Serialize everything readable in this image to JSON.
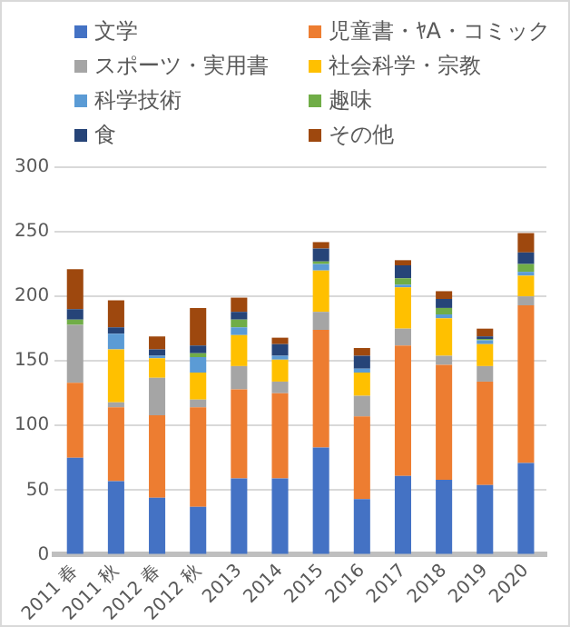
{
  "chart_data": {
    "type": "bar",
    "stacked": true,
    "legend": "top",
    "grid": "y",
    "categories": [
      "2011 春",
      "2011 秋",
      "2012 春",
      "2012 秋",
      "2013",
      "2014",
      "2015",
      "2016",
      "2017",
      "2018",
      "2019",
      "2020"
    ],
    "ylim": [
      0,
      300
    ],
    "yticks": [
      0,
      50,
      100,
      150,
      200,
      250,
      300
    ],
    "series": [
      {
        "name": "文学",
        "color": "#4472c4",
        "values": [
          75,
          57,
          44,
          37,
          59,
          59,
          83,
          43,
          61,
          58,
          54,
          71
        ]
      },
      {
        "name": "児童書・ﾔA・コミック",
        "color": "#ed7d31",
        "values": [
          58,
          57,
          64,
          77,
          69,
          66,
          91,
          64,
          101,
          89,
          80,
          122
        ]
      },
      {
        "name": "スポーツ・実用書",
        "color": "#a5a5a5",
        "values": [
          45,
          4,
          29,
          6,
          18,
          9,
          14,
          16,
          13,
          7,
          12,
          7
        ]
      },
      {
        "name": "社会科学・宗教",
        "color": "#ffc000",
        "values": [
          0,
          41,
          15,
          21,
          24,
          17,
          32,
          18,
          32,
          29,
          17,
          16
        ]
      },
      {
        "name": "科学技術",
        "color": "#5b9bd5",
        "values": [
          0,
          12,
          2,
          12,
          6,
          3,
          5,
          3,
          2,
          3,
          3,
          3
        ]
      },
      {
        "name": "趣味",
        "color": "#70ad47",
        "values": [
          4,
          0,
          0,
          3,
          6,
          0,
          2,
          0,
          5,
          5,
          1,
          6
        ]
      },
      {
        "name": "食",
        "color": "#264478",
        "values": [
          8,
          5,
          5,
          6,
          6,
          9,
          10,
          10,
          10,
          7,
          2,
          9
        ]
      },
      {
        "name": "その他",
        "color": "#9e480e",
        "values": [
          31,
          21,
          10,
          29,
          11,
          5,
          5,
          6,
          4,
          6,
          6,
          15
        ]
      }
    ]
  }
}
